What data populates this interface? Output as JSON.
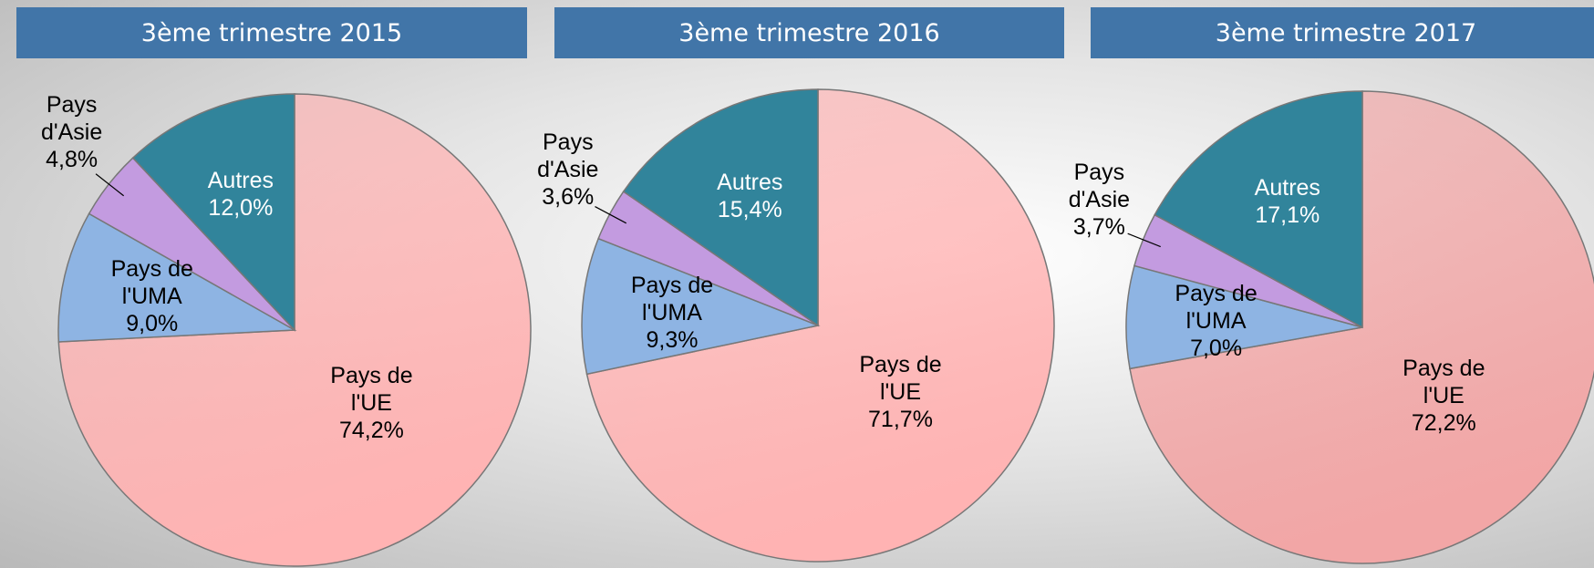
{
  "chart_data": [
    {
      "type": "pie",
      "title": "3ème trimestre 2015",
      "categories": [
        "Pays de l'UE",
        "Pays de l'UMA",
        "Pays d'Asie",
        "Autres"
      ],
      "values": [
        74.2,
        9.0,
        4.8,
        12.0
      ],
      "value_labels": [
        "74,2%",
        "9,0%",
        "4,8%",
        "12,0%"
      ],
      "colors": [
        "#ffb3b3",
        "#8eb4e3",
        "#c39be0",
        "#31849b"
      ]
    },
    {
      "type": "pie",
      "title": "3ème trimestre 2016",
      "categories": [
        "Pays de l'UE",
        "Pays de l'UMA",
        "Pays d'Asie",
        "Autres"
      ],
      "values": [
        71.7,
        9.3,
        3.6,
        15.4
      ],
      "value_labels": [
        "71,7%",
        "9,3%",
        "3,6%",
        "15,4%"
      ],
      "colors": [
        "#ffb3b3",
        "#8eb4e3",
        "#c39be0",
        "#31849b"
      ]
    },
    {
      "type": "pie",
      "title": "3ème trimestre 2017",
      "categories": [
        "Pays de l'UE",
        "Pays de l'UMA",
        "Pays d'Asie",
        "Autres"
      ],
      "values": [
        72.2,
        7.0,
        3.7,
        17.1
      ],
      "value_labels": [
        "72,2%",
        "7,0%",
        "3,7%",
        "17,1%"
      ],
      "colors": [
        "#f2a6a6",
        "#8eb4e3",
        "#c39be0",
        "#31849b"
      ]
    }
  ]
}
